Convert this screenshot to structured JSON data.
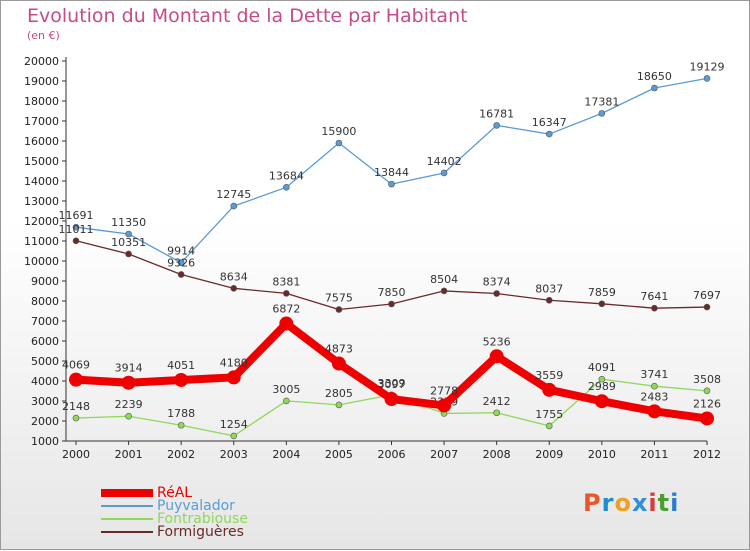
{
  "title": "Evolution du Montant de la Dette par Habitant",
  "subtitle": "(en €)",
  "logo": {
    "text": "Proxiti",
    "colors": [
      "#e8562a",
      "#1a8fd0",
      "#f0a020",
      "#2f8fd8",
      "#d63c3c",
      "#4aa02e",
      "#2c7bd0"
    ]
  },
  "chart_data": {
    "type": "line",
    "x": [
      2000,
      2001,
      2002,
      2003,
      2004,
      2005,
      2006,
      2007,
      2008,
      2009,
      2010,
      2011,
      2012
    ],
    "ylim": [
      1000,
      20000
    ],
    "yticks": [
      1000,
      2000,
      3000,
      4000,
      5000,
      6000,
      7000,
      8000,
      9000,
      10000,
      11000,
      12000,
      13000,
      14000,
      15000,
      16000,
      17000,
      18000,
      19000,
      20000
    ],
    "grid": false,
    "legend_position": "bottom-left",
    "series": [
      {
        "name": "RéAL",
        "color": "#ee0000",
        "values": [
          4069,
          3914,
          4051,
          4180,
          6872,
          4873,
          3097,
          2778,
          5236,
          3559,
          2989,
          2483,
          2126
        ]
      },
      {
        "name": "Puyvalador",
        "color": "#5b9bd5",
        "values": [
          11691,
          11350,
          9914,
          12745,
          13684,
          15900,
          13844,
          14402,
          16781,
          16347,
          17381,
          18650,
          19129
        ]
      },
      {
        "name": "Fontrabiouse",
        "color": "#8ed85a",
        "values": [
          2148,
          2239,
          1788,
          1254,
          3005,
          2805,
          3309,
          2379,
          2412,
          1755,
          4091,
          3741,
          3508
        ]
      },
      {
        "name": "Formiguères",
        "color": "#6b2a2a",
        "values": [
          11011,
          10351,
          9326,
          8634,
          8381,
          7575,
          7850,
          8504,
          8374,
          8037,
          7859,
          7641,
          7697
        ]
      }
    ]
  }
}
